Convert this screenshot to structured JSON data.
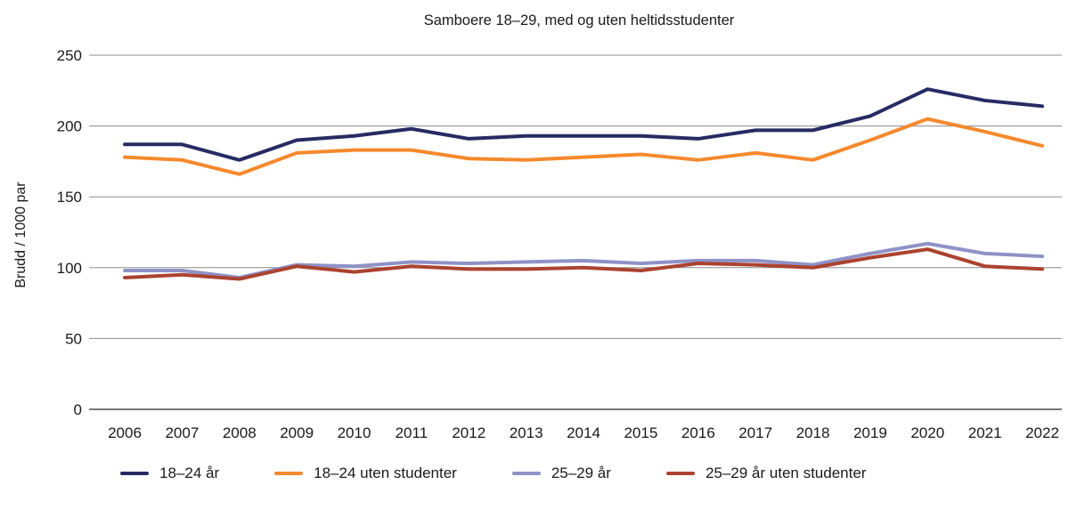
{
  "chart_data": {
    "type": "line",
    "title": "Samboere 18–29, med og uten heltidsstudenter",
    "ylabel": "Brudd / 1000 par",
    "xlabel": "",
    "categories": [
      "2006",
      "2007",
      "2008",
      "2009",
      "2010",
      "2011",
      "2012",
      "2013",
      "2014",
      "2015",
      "2016",
      "2017",
      "2018",
      "2019",
      "2020",
      "2021",
      "2022"
    ],
    "yticks": [
      0,
      50,
      100,
      150,
      200,
      250
    ],
    "ylim": [
      0,
      250
    ],
    "grid": true,
    "legend_position": "bottom",
    "series": [
      {
        "name": "18–24 år",
        "color": "#272b63",
        "values": [
          187,
          187,
          176,
          190,
          193,
          198,
          191,
          193,
          193,
          193,
          191,
          197,
          197,
          207,
          226,
          218,
          214
        ]
      },
      {
        "name": "18–24 uten studenter",
        "color": "#f6892d",
        "values": [
          178,
          176,
          166,
          181,
          183,
          183,
          177,
          176,
          178,
          180,
          176,
          181,
          176,
          190,
          205,
          196,
          186
        ]
      },
      {
        "name": "25–29 år",
        "color": "#8e92c6",
        "values": [
          98,
          98,
          93,
          102,
          101,
          104,
          103,
          104,
          105,
          103,
          105,
          105,
          102,
          110,
          117,
          110,
          108
        ]
      },
      {
        "name": "25–29 år uten studenter",
        "color": "#ab432f",
        "values": [
          93,
          95,
          92,
          101,
          97,
          101,
          99,
          99,
          100,
          98,
          103,
          102,
          100,
          107,
          113,
          101,
          99
        ]
      }
    ]
  }
}
